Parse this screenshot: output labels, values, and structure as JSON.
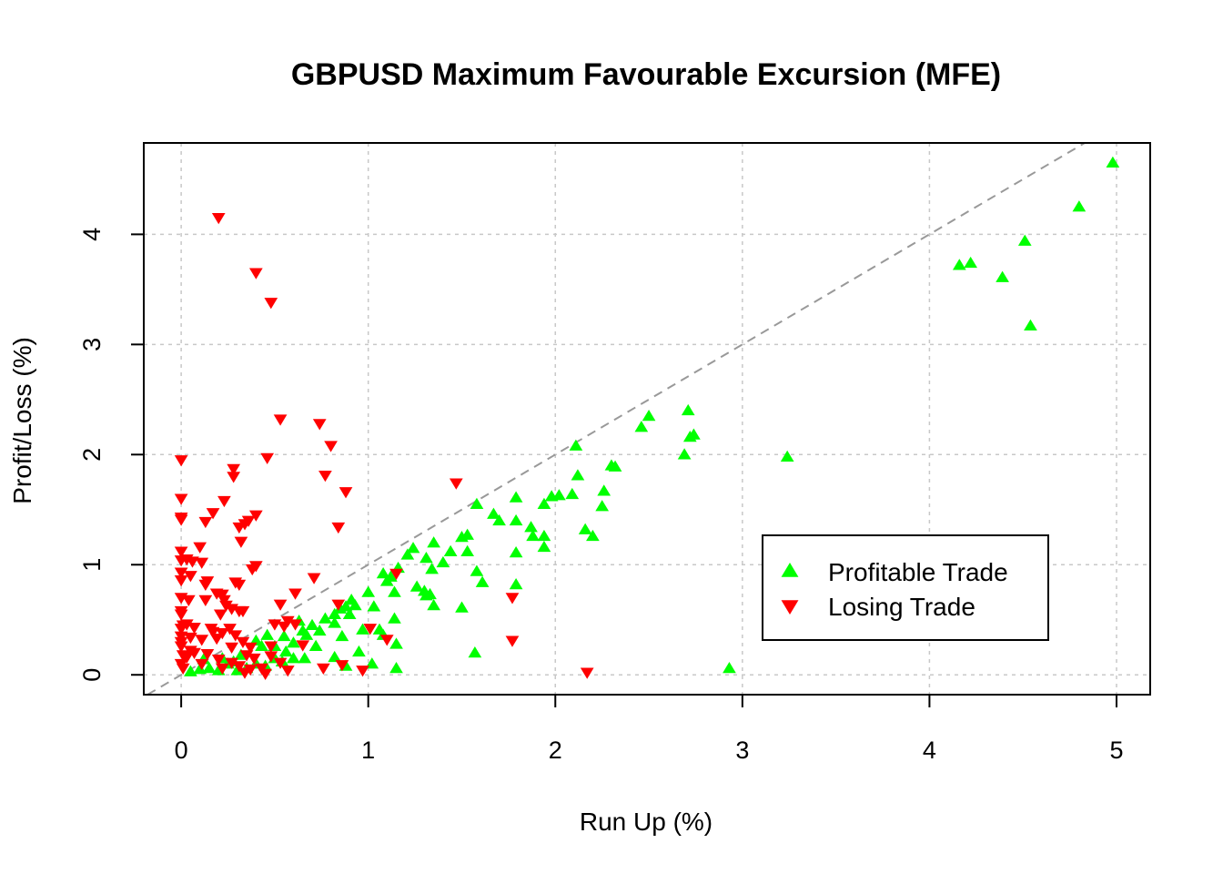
{
  "chart_data": {
    "type": "scatter",
    "title": "GBPUSD Maximum Favourable Excursion (MFE)",
    "xlabel": "Run Up (%)",
    "ylabel": "Profit/Loss (%)",
    "xlim": [
      -0.2,
      5.18
    ],
    "ylim": [
      -0.18,
      4.83
    ],
    "xticks": [
      0,
      1,
      2,
      3,
      4,
      5
    ],
    "yticks": [
      0,
      1,
      2,
      3,
      4
    ],
    "grid": true,
    "reference_line": "y = x (dashed grey)",
    "legend_position": "bottom-right",
    "colors": {
      "profitable": "#00ff00",
      "losing": "#ff0000",
      "reference": "#999999"
    },
    "series": [
      {
        "name": "Profitable Trade",
        "marker": "triangle-up",
        "color": "#00ff00",
        "points": [
          [
            4.98,
            4.65
          ],
          [
            4.8,
            4.25
          ],
          [
            4.51,
            3.94
          ],
          [
            4.22,
            3.74
          ],
          [
            4.16,
            3.72
          ],
          [
            4.39,
            3.61
          ],
          [
            4.54,
            3.17
          ],
          [
            2.71,
            2.4
          ],
          [
            2.5,
            2.35
          ],
          [
            2.46,
            2.25
          ],
          [
            2.74,
            2.18
          ],
          [
            2.72,
            2.16
          ],
          [
            2.11,
            2.08
          ],
          [
            2.69,
            2.0
          ],
          [
            3.24,
            1.98
          ],
          [
            2.3,
            1.9
          ],
          [
            2.32,
            1.89
          ],
          [
            2.12,
            1.81
          ],
          [
            2.26,
            1.67
          ],
          [
            2.09,
            1.64
          ],
          [
            2.02,
            1.63
          ],
          [
            1.98,
            1.62
          ],
          [
            1.79,
            1.61
          ],
          [
            1.94,
            1.55
          ],
          [
            1.58,
            1.55
          ],
          [
            2.25,
            1.53
          ],
          [
            1.67,
            1.46
          ],
          [
            1.7,
            1.4
          ],
          [
            1.79,
            1.4
          ],
          [
            1.87,
            1.34
          ],
          [
            2.16,
            1.32
          ],
          [
            1.88,
            1.26
          ],
          [
            2.2,
            1.26
          ],
          [
            1.53,
            1.27
          ],
          [
            1.94,
            1.26
          ],
          [
            1.5,
            1.25
          ],
          [
            1.35,
            1.2
          ],
          [
            1.24,
            1.15
          ],
          [
            1.44,
            1.12
          ],
          [
            1.53,
            1.12
          ],
          [
            1.79,
            1.11
          ],
          [
            1.94,
            1.16
          ],
          [
            1.21,
            1.09
          ],
          [
            1.31,
            1.06
          ],
          [
            1.4,
            1.02
          ],
          [
            1.08,
            0.92
          ],
          [
            1.16,
            0.97
          ],
          [
            1.58,
            0.94
          ],
          [
            1.34,
            0.96
          ],
          [
            1.12,
            0.89
          ],
          [
            1.1,
            0.85
          ],
          [
            1.61,
            0.84
          ],
          [
            1.79,
            0.82
          ],
          [
            1.26,
            0.8
          ],
          [
            1.3,
            0.76
          ],
          [
            1.14,
            0.75
          ],
          [
            1.33,
            0.73
          ],
          [
            1.31,
            0.72
          ],
          [
            1.0,
            0.75
          ],
          [
            1.35,
            0.63
          ],
          [
            1.5,
            0.61
          ],
          [
            1.03,
            0.62
          ],
          [
            0.91,
            0.68
          ],
          [
            0.88,
            0.62
          ],
          [
            0.85,
            0.6
          ],
          [
            0.82,
            0.55
          ],
          [
            0.9,
            0.55
          ],
          [
            0.93,
            0.63
          ],
          [
            1.14,
            0.51
          ],
          [
            0.82,
            0.47
          ],
          [
            0.77,
            0.51
          ],
          [
            0.63,
            0.49
          ],
          [
            0.7,
            0.45
          ],
          [
            0.74,
            0.4
          ],
          [
            0.65,
            0.4
          ],
          [
            0.67,
            0.36
          ],
          [
            0.86,
            0.35
          ],
          [
            1.08,
            0.36
          ],
          [
            0.55,
            0.35
          ],
          [
            0.6,
            0.29
          ],
          [
            0.5,
            0.26
          ],
          [
            0.43,
            0.26
          ],
          [
            0.4,
            0.31
          ],
          [
            0.46,
            0.36
          ],
          [
            0.97,
            0.41
          ],
          [
            1.06,
            0.41
          ],
          [
            1.15,
            0.28
          ],
          [
            0.95,
            0.21
          ],
          [
            0.72,
            0.26
          ],
          [
            0.56,
            0.21
          ],
          [
            0.5,
            0.15
          ],
          [
            0.32,
            0.18
          ],
          [
            0.28,
            0.12
          ],
          [
            0.22,
            0.15
          ],
          [
            0.12,
            0.14
          ],
          [
            0.6,
            0.15
          ],
          [
            0.66,
            0.15
          ],
          [
            0.82,
            0.16
          ],
          [
            0.54,
            0.12
          ],
          [
            0.4,
            0.1
          ],
          [
            0.35,
            0.06
          ],
          [
            0.3,
            0.04
          ],
          [
            0.2,
            0.04
          ],
          [
            0.15,
            0.06
          ],
          [
            0.1,
            0.05
          ],
          [
            0.05,
            0.03
          ],
          [
            1.02,
            0.1
          ],
          [
            1.15,
            0.06
          ],
          [
            0.88,
            0.08
          ],
          [
            1.57,
            0.2
          ],
          [
            2.93,
            0.06
          ],
          [
            0.25,
            0.1
          ],
          [
            0.45,
            0.08
          ]
        ]
      },
      {
        "name": "Losing Trade",
        "marker": "triangle-down",
        "color": "#ff0000",
        "points": [
          [
            0.2,
            4.15
          ],
          [
            0.4,
            3.65
          ],
          [
            0.48,
            3.38
          ],
          [
            0.53,
            2.32
          ],
          [
            0.74,
            2.28
          ],
          [
            0.8,
            2.08
          ],
          [
            0.46,
            1.97
          ],
          [
            0.0,
            1.95
          ],
          [
            0.28,
            1.87
          ],
          [
            0.28,
            1.8
          ],
          [
            0.77,
            1.81
          ],
          [
            1.47,
            1.74
          ],
          [
            0.88,
            1.66
          ],
          [
            0.0,
            1.6
          ],
          [
            0.23,
            1.58
          ],
          [
            0.17,
            1.47
          ],
          [
            0.4,
            1.45
          ],
          [
            0.0,
            1.43
          ],
          [
            0.0,
            1.41
          ],
          [
            0.36,
            1.4
          ],
          [
            0.13,
            1.39
          ],
          [
            0.31,
            1.34
          ],
          [
            0.34,
            1.37
          ],
          [
            0.84,
            1.34
          ],
          [
            0.32,
            1.21
          ],
          [
            0.1,
            1.16
          ],
          [
            0.0,
            1.12
          ],
          [
            0.03,
            1.05
          ],
          [
            0.0,
            1.04
          ],
          [
            0.06,
            1.03
          ],
          [
            0.11,
            1.02
          ],
          [
            0.38,
            0.96
          ],
          [
            0.4,
            0.99
          ],
          [
            0.0,
            0.93
          ],
          [
            0.05,
            0.9
          ],
          [
            0.71,
            0.88
          ],
          [
            0.14,
            0.85
          ],
          [
            0.13,
            0.82
          ],
          [
            0.29,
            0.84
          ],
          [
            0.31,
            0.82
          ],
          [
            0.0,
            0.86
          ],
          [
            0.61,
            0.74
          ],
          [
            0.19,
            0.74
          ],
          [
            0.22,
            0.73
          ],
          [
            0.23,
            0.68
          ],
          [
            0.0,
            0.7
          ],
          [
            0.04,
            0.68
          ],
          [
            0.24,
            0.63
          ],
          [
            1.77,
            0.7
          ],
          [
            0.53,
            0.64
          ],
          [
            0.13,
            0.68
          ],
          [
            0.27,
            0.6
          ],
          [
            0.31,
            0.58
          ],
          [
            0.0,
            0.58
          ],
          [
            0.0,
            0.55
          ],
          [
            0.21,
            0.55
          ],
          [
            0.33,
            0.58
          ],
          [
            0.84,
            0.64
          ],
          [
            0.57,
            0.49
          ],
          [
            0.5,
            0.46
          ],
          [
            0.61,
            0.46
          ],
          [
            0.03,
            0.46
          ],
          [
            0.01,
            0.45
          ],
          [
            0.0,
            0.42
          ],
          [
            0.55,
            0.44
          ],
          [
            0.07,
            0.43
          ],
          [
            0.16,
            0.42
          ],
          [
            0.26,
            0.42
          ],
          [
            0.17,
            0.39
          ],
          [
            0.22,
            0.38
          ],
          [
            0.29,
            0.36
          ],
          [
            1.01,
            0.42
          ],
          [
            0.05,
            0.34
          ],
          [
            0.0,
            0.35
          ],
          [
            0.11,
            0.32
          ],
          [
            0.19,
            0.33
          ],
          [
            0.0,
            0.3
          ],
          [
            0.33,
            0.3
          ],
          [
            1.77,
            0.31
          ],
          [
            0.0,
            0.26
          ],
          [
            0.05,
            0.22
          ],
          [
            0.27,
            0.25
          ],
          [
            0.48,
            0.26
          ],
          [
            0.07,
            0.2
          ],
          [
            0.01,
            0.18
          ],
          [
            0.14,
            0.19
          ],
          [
            0.03,
            0.16
          ],
          [
            0.35,
            0.18
          ],
          [
            1.1,
            0.32
          ],
          [
            0.48,
            0.17
          ],
          [
            0.39,
            0.15
          ],
          [
            0.2,
            0.14
          ],
          [
            0.11,
            0.1
          ],
          [
            0.53,
            0.11
          ],
          [
            0.0,
            0.1
          ],
          [
            0.01,
            0.06
          ],
          [
            0.22,
            0.06
          ],
          [
            0.27,
            0.11
          ],
          [
            0.31,
            0.08
          ],
          [
            0.37,
            0.05
          ],
          [
            0.43,
            0.06
          ],
          [
            0.57,
            0.04
          ],
          [
            0.76,
            0.06
          ],
          [
            0.86,
            0.09
          ],
          [
            0.97,
            0.04
          ],
          [
            0.34,
            0.02
          ],
          [
            0.45,
            0.01
          ],
          [
            1.15,
            0.92
          ],
          [
            2.17,
            0.02
          ],
          [
            0.65,
            0.27
          ],
          [
            0.37,
            0.25
          ]
        ]
      }
    ]
  }
}
